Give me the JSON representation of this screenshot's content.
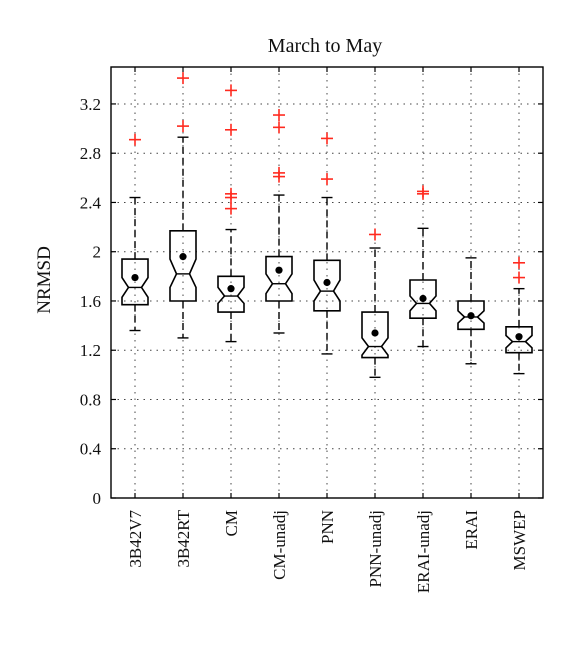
{
  "colors": {
    "outlier": "#ff2a1f",
    "box": "#000000",
    "mean_dot": "#000000",
    "grid": "#444444"
  },
  "chart_data": {
    "type": "boxplot",
    "title": "March to May",
    "ylabel": "NRMSD",
    "xlabel": "",
    "ylim": [
      0,
      3.5
    ],
    "yticks": [
      0,
      0.4,
      0.8,
      1.2,
      1.6,
      2,
      2.4,
      2.8,
      3.2
    ],
    "ytick_labels": [
      "0",
      "0.4",
      "0.8",
      "1.2",
      "1.6",
      "2",
      "2.4",
      "2.8",
      "3.2"
    ],
    "grid": true,
    "notched": true,
    "categories": [
      "3B42V7",
      "3B42RT",
      "CM",
      "CM-unadj",
      "PNN",
      "PNN-unadj",
      "ERAI-unadj",
      "ERAI",
      "MSWEP"
    ],
    "boxes": [
      {
        "label": "3B42V7",
        "whisker_low": 1.36,
        "q1": 1.57,
        "median": 1.71,
        "q3": 1.94,
        "whisker_high": 2.44,
        "notch_low": 1.63,
        "notch_high": 1.79,
        "mean": 1.79,
        "outliers": [
          2.91
        ]
      },
      {
        "label": "3B42RT",
        "whisker_low": 1.3,
        "q1": 1.6,
        "median": 1.82,
        "q3": 2.17,
        "whisker_high": 2.93,
        "notch_low": 1.71,
        "notch_high": 1.94,
        "mean": 1.96,
        "outliers": [
          3.02,
          3.41
        ]
      },
      {
        "label": "CM",
        "whisker_low": 1.27,
        "q1": 1.51,
        "median": 1.64,
        "q3": 1.8,
        "whisker_high": 2.18,
        "notch_low": 1.58,
        "notch_high": 1.71,
        "mean": 1.7,
        "outliers": [
          2.35,
          2.44,
          2.47,
          2.99,
          3.31
        ]
      },
      {
        "label": "CM-unadj",
        "whisker_low": 1.34,
        "q1": 1.6,
        "median": 1.74,
        "q3": 1.96,
        "whisker_high": 2.46,
        "notch_low": 1.66,
        "notch_high": 1.82,
        "mean": 1.85,
        "outliers": [
          2.61,
          2.64,
          3.01,
          3.11
        ]
      },
      {
        "label": "PNN",
        "whisker_low": 1.17,
        "q1": 1.52,
        "median": 1.68,
        "q3": 1.93,
        "whisker_high": 2.44,
        "notch_low": 1.6,
        "notch_high": 1.77,
        "mean": 1.75,
        "outliers": [
          2.59,
          2.92
        ]
      },
      {
        "label": "PNN-unadj",
        "whisker_low": 0.98,
        "q1": 1.14,
        "median": 1.23,
        "q3": 1.51,
        "whisker_high": 2.03,
        "notch_low": 1.16,
        "notch_high": 1.3,
        "mean": 1.34,
        "outliers": [
          2.14
        ]
      },
      {
        "label": "ERAI-unadj",
        "whisker_low": 1.23,
        "q1": 1.46,
        "median": 1.58,
        "q3": 1.77,
        "whisker_high": 2.19,
        "notch_low": 1.52,
        "notch_high": 1.64,
        "mean": 1.62,
        "outliers": [
          2.47,
          2.49
        ]
      },
      {
        "label": "ERAI",
        "whisker_low": 1.09,
        "q1": 1.37,
        "median": 1.47,
        "q3": 1.6,
        "whisker_high": 1.95,
        "notch_low": 1.42,
        "notch_high": 1.52,
        "mean": 1.48,
        "outliers": []
      },
      {
        "label": "MSWEP",
        "whisker_low": 1.01,
        "q1": 1.18,
        "median": 1.27,
        "q3": 1.39,
        "whisker_high": 1.7,
        "notch_low": 1.22,
        "notch_high": 1.32,
        "mean": 1.31,
        "outliers": [
          1.79,
          1.91
        ]
      }
    ]
  }
}
